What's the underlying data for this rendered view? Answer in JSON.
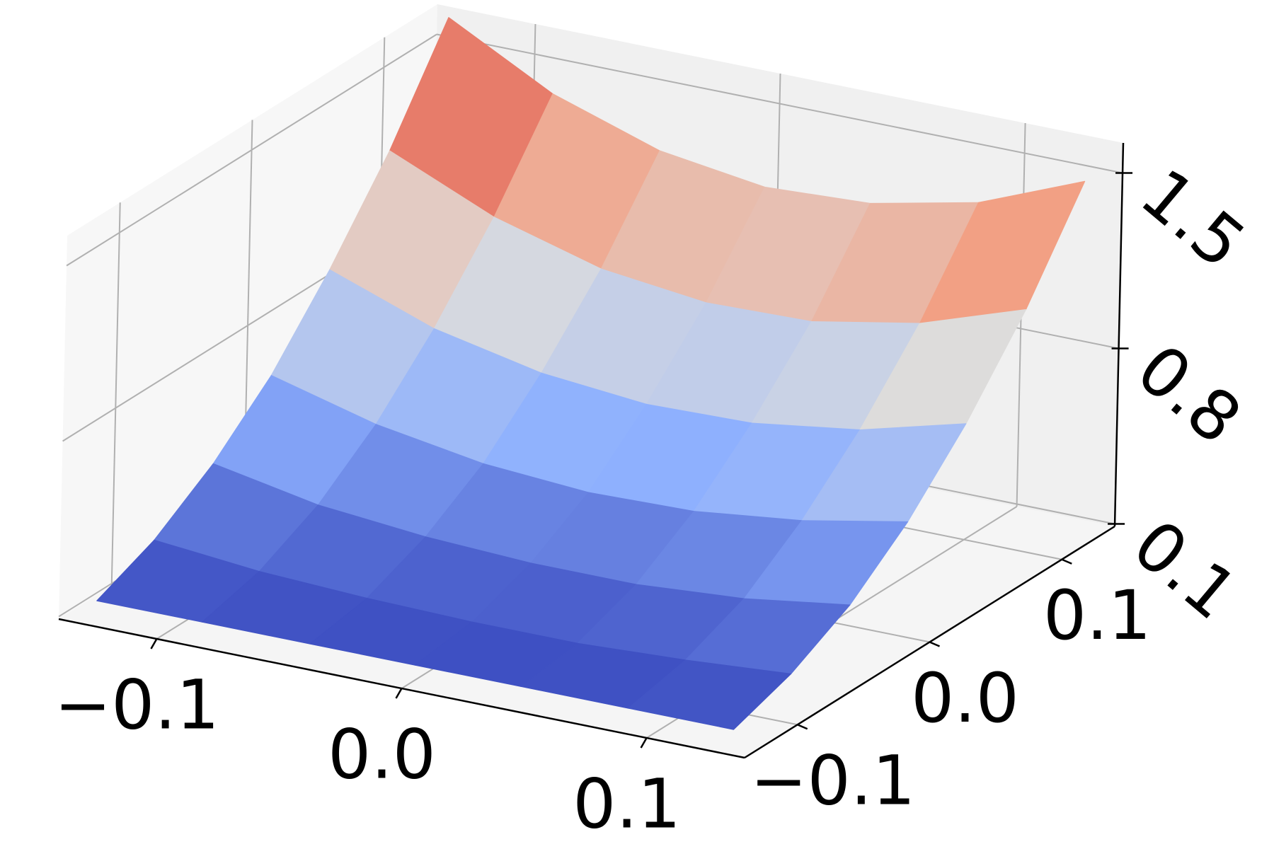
{
  "chart_data": {
    "type": "surface",
    "x": [
      -0.13,
      -0.087,
      -0.043,
      0,
      0.043,
      0.087,
      0.13
    ],
    "y": [
      -0.13,
      -0.087,
      -0.043,
      0,
      0.043,
      0.087,
      0.13
    ],
    "z": [
      [
        0.15,
        0.15,
        0.15,
        0.15,
        0.15,
        0.15,
        0.15
      ],
      [
        0.25,
        0.21,
        0.19,
        0.18,
        0.18,
        0.2,
        0.23
      ],
      [
        0.41,
        0.33,
        0.29,
        0.27,
        0.27,
        0.3,
        0.36
      ],
      [
        0.62,
        0.51,
        0.44,
        0.41,
        0.42,
        0.47,
        0.55
      ],
      [
        0.9,
        0.75,
        0.66,
        0.62,
        0.63,
        0.69,
        0.8
      ],
      [
        1.23,
        1.05,
        0.93,
        0.88,
        0.89,
        0.97,
        1.11
      ],
      [
        1.62,
        1.4,
        1.26,
        1.2,
        1.22,
        1.31,
        1.48
      ]
    ],
    "colormap": "coolwarm",
    "xlim": [
      -0.14,
      0.14
    ],
    "ylim": [
      -0.14,
      0.14
    ],
    "zlim": [
      0.09,
      1.62
    ],
    "xticks": [
      {
        "value": -0.1,
        "label": "−0.1"
      },
      {
        "value": 0,
        "label": "0.0"
      },
      0.1
    ],
    "yticks": [
      {
        "value": -0.1,
        "label": "−0.1"
      },
      {
        "value": 0,
        "label": "0.0"
      },
      0.1
    ],
    "zticks": [
      0.1,
      0.8,
      1.5
    ],
    "grid": true
  }
}
